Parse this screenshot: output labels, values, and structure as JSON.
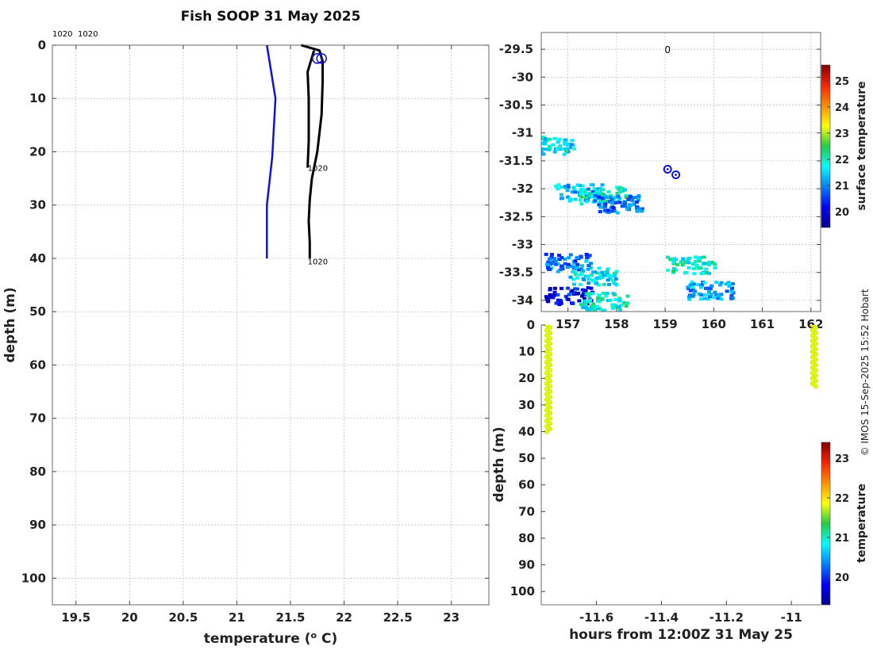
{
  "title": "Fish SOOP 31 May 2025",
  "credit": "© IMOS 15-Sep-2025 15:52 Hobart",
  "colors": {
    "profile_blue": "#1010e0",
    "profile_black": "#000000",
    "grid": "#bbbbbb"
  },
  "chart_data": [
    {
      "id": "profile",
      "type": "line",
      "xlabel": "temperature (o C)",
      "ylabel": "depth (m)",
      "xlim": [
        19.28,
        23.35
      ],
      "ylim": [
        105,
        0
      ],
      "xticks": [
        "19.5",
        "20",
        "20.5",
        "21",
        "21.5",
        "22",
        "22.5",
        "23"
      ],
      "yticks": [
        "0",
        "10",
        "20",
        "30",
        "40",
        "50",
        "60",
        "70",
        "80",
        "90",
        "100"
      ],
      "grid": true,
      "top_labels": [
        "1020",
        "1020"
      ],
      "series": [
        {
          "color": "#1010e0",
          "x": [
            21.28,
            21.36,
            21.33,
            21.28,
            21.28
          ],
          "y": [
            0,
            10,
            21,
            30,
            40
          ]
        },
        {
          "color": "#000000",
          "x": [
            21.6,
            21.77,
            21.8,
            21.8,
            21.79,
            21.75,
            21.7,
            21.68,
            21.67,
            21.68,
            21.68
          ],
          "y": [
            0,
            1,
            3,
            7,
            13,
            20,
            25,
            29,
            33,
            37,
            40
          ]
        },
        {
          "color": "#000000",
          "x": [
            21.72,
            21.66,
            21.67,
            21.67,
            21.66
          ],
          "y": [
            1,
            5,
            10,
            18,
            23
          ]
        }
      ],
      "markers": [
        {
          "x": 21.75,
          "y": 2.5
        },
        {
          "x": 21.79,
          "y": 2.5
        }
      ],
      "annotations": [
        {
          "text": "1020",
          "x": 21.66,
          "y": 23
        },
        {
          "text": "1020",
          "x": 21.66,
          "y": 40.5
        }
      ]
    },
    {
      "id": "map",
      "type": "heatmap",
      "xlim": [
        156.45,
        162.2
      ],
      "ylim": [
        -34.2,
        -29.2
      ],
      "xticks": [
        "157",
        "158",
        "159",
        "160",
        "161",
        "162"
      ],
      "yticks": [
        "-29.5",
        "-30",
        "-30.5",
        "-31",
        "-31.5",
        "-32",
        "-32.5",
        "-33",
        "-33.5",
        "-34"
      ],
      "grid": true,
      "colorbar": {
        "label": "surface temperature",
        "min": 19.4,
        "max": 25.6,
        "ticks": [
          "20",
          "21",
          "22",
          "23",
          "24",
          "25"
        ]
      },
      "track_label": "0",
      "stations": [
        {
          "lon": 159.05,
          "lat": -31.65
        },
        {
          "lon": 159.22,
          "lat": -31.75
        }
      ],
      "sst_patches": [
        {
          "lon": 156.6,
          "lat": -31.2,
          "value": 21.6
        },
        {
          "lon": 157.2,
          "lat": -32.05,
          "value": 21.3
        },
        {
          "lon": 157.7,
          "lat": -32.1,
          "value": 22.0
        },
        {
          "lon": 158.0,
          "lat": -32.25,
          "value": 20.8
        },
        {
          "lon": 157.0,
          "lat": -33.3,
          "value": 20.9
        },
        {
          "lon": 157.5,
          "lat": -33.55,
          "value": 21.6
        },
        {
          "lon": 157.0,
          "lat": -33.9,
          "value": 20.1
        },
        {
          "lon": 157.7,
          "lat": -34.0,
          "value": 21.8
        },
        {
          "lon": 159.5,
          "lat": -33.35,
          "value": 21.9
        },
        {
          "lon": 159.9,
          "lat": -33.8,
          "value": 21.2
        }
      ]
    },
    {
      "id": "timeseries",
      "type": "scatter",
      "xlabel": "hours from 12:00Z 31 May 25",
      "ylabel": "depth (m)",
      "xlim": [
        -11.77,
        -10.91
      ],
      "ylim": [
        105,
        0
      ],
      "xticks": [
        "-11.6",
        "-11.4",
        "-11.2",
        "-11"
      ],
      "yticks": [
        "0",
        "10",
        "20",
        "30",
        "40",
        "50",
        "60",
        "70",
        "80",
        "90",
        "100"
      ],
      "colorbar": {
        "label": "temperature",
        "min": 19.3,
        "max": 23.4,
        "ticks": [
          "20",
          "21",
          "22",
          "23"
        ]
      },
      "casts": [
        {
          "x": -11.748,
          "depth_min": 0,
          "depth_max": 40,
          "temperature": 21.8
        },
        {
          "x": -10.93,
          "depth_min": 0,
          "depth_max": 23,
          "temperature": 21.8
        }
      ]
    }
  ]
}
